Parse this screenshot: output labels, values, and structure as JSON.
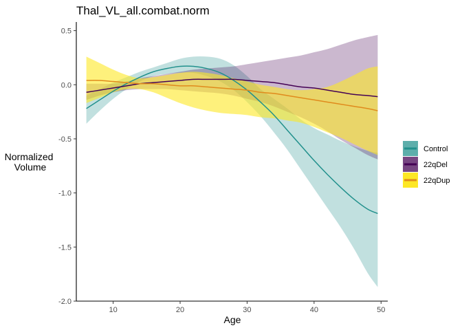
{
  "chart_data": {
    "type": "line",
    "title": "Thal_VL_all.combat.norm",
    "xlabel": "Age",
    "ylabel": "Normalized\nVolume",
    "xlim": [
      4.5,
      51
    ],
    "ylim": [
      -2.0,
      0.58
    ],
    "x_ticks": [
      10,
      20,
      30,
      40,
      50
    ],
    "y_ticks": [
      0.5,
      0.0,
      -0.5,
      -1.0,
      -1.5,
      -2.0
    ],
    "y_tick_labels": [
      "0.5",
      "0.0",
      "-0.5",
      "-1.0",
      "-1.5",
      "-2.0"
    ],
    "grid": false,
    "legend_position": "right",
    "series": [
      {
        "name": "Control",
        "line_color": "#21908c",
        "band_color": "#21908c",
        "band_opacity": 0.28,
        "x": [
          6,
          8,
          10,
          12,
          14,
          16,
          18,
          20,
          22,
          24,
          26,
          28,
          30,
          32,
          34,
          36,
          38,
          40,
          42,
          44,
          46,
          48,
          49.5
        ],
        "y": [
          -0.22,
          -0.14,
          -0.06,
          0.01,
          0.07,
          0.12,
          0.15,
          0.17,
          0.17,
          0.15,
          0.11,
          0.04,
          -0.05,
          -0.16,
          -0.28,
          -0.42,
          -0.56,
          -0.7,
          -0.83,
          -0.95,
          -1.06,
          -1.15,
          -1.19
        ],
        "lower": [
          -0.36,
          -0.24,
          -0.13,
          -0.04,
          0.03,
          0.08,
          0.1,
          0.11,
          0.11,
          0.08,
          0.03,
          -0.05,
          -0.16,
          -0.29,
          -0.44,
          -0.6,
          -0.78,
          -0.96,
          -1.14,
          -1.32,
          -1.52,
          -1.74,
          -1.87
        ],
        "upper": [
          -0.1,
          -0.04,
          0.02,
          0.07,
          0.12,
          0.16,
          0.2,
          0.24,
          0.26,
          0.26,
          0.24,
          0.18,
          0.08,
          -0.04,
          -0.13,
          -0.22,
          -0.32,
          -0.4,
          -0.46,
          -0.52,
          -0.57,
          -0.61,
          -0.63
        ]
      },
      {
        "name": "22qDel",
        "line_color": "#440154",
        "band_color": "#440154",
        "band_opacity": 0.28,
        "x": [
          6,
          8,
          10,
          12,
          14,
          16,
          18,
          20,
          22,
          24,
          26,
          28,
          30,
          32,
          34,
          36,
          38,
          40,
          42,
          44,
          46,
          48,
          49.5
        ],
        "y": [
          -0.07,
          -0.05,
          -0.03,
          -0.01,
          0.01,
          0.02,
          0.03,
          0.04,
          0.05,
          0.05,
          0.05,
          0.05,
          0.04,
          0.03,
          0.02,
          0.0,
          -0.02,
          -0.03,
          -0.05,
          -0.07,
          -0.09,
          -0.1,
          -0.11
        ],
        "lower": [
          -0.14,
          -0.1,
          -0.07,
          -0.05,
          -0.04,
          -0.04,
          -0.04,
          -0.05,
          -0.06,
          -0.07,
          -0.08,
          -0.1,
          -0.13,
          -0.16,
          -0.2,
          -0.25,
          -0.3,
          -0.36,
          -0.43,
          -0.51,
          -0.58,
          -0.65,
          -0.69
        ],
        "upper": [
          0.01,
          0.01,
          0.01,
          0.03,
          0.06,
          0.08,
          0.1,
          0.12,
          0.14,
          0.15,
          0.16,
          0.17,
          0.19,
          0.21,
          0.23,
          0.25,
          0.27,
          0.3,
          0.33,
          0.37,
          0.41,
          0.44,
          0.46
        ]
      },
      {
        "name": "22qDup",
        "line_color": "#e08a1c",
        "band_color": "#fde725",
        "band_opacity": 0.6,
        "x": [
          6,
          8,
          10,
          12,
          14,
          16,
          18,
          20,
          22,
          24,
          26,
          28,
          30,
          32,
          34,
          36,
          38,
          40,
          42,
          44,
          46,
          48,
          49.5
        ],
        "y": [
          0.04,
          0.04,
          0.03,
          0.02,
          0.01,
          0.01,
          0.0,
          -0.01,
          -0.01,
          -0.02,
          -0.03,
          -0.04,
          -0.05,
          -0.07,
          -0.08,
          -0.1,
          -0.12,
          -0.14,
          -0.16,
          -0.18,
          -0.2,
          -0.22,
          -0.24
        ],
        "lower": [
          -0.17,
          -0.12,
          -0.07,
          -0.04,
          -0.04,
          -0.07,
          -0.12,
          -0.17,
          -0.21,
          -0.24,
          -0.26,
          -0.27,
          -0.28,
          -0.3,
          -0.31,
          -0.33,
          -0.35,
          -0.39,
          -0.44,
          -0.49,
          -0.55,
          -0.61,
          -0.65
        ],
        "upper": [
          0.26,
          0.2,
          0.14,
          0.09,
          0.06,
          0.07,
          0.09,
          0.11,
          0.12,
          0.11,
          0.09,
          0.06,
          0.03,
          0.0,
          -0.02,
          -0.04,
          -0.05,
          -0.04,
          -0.02,
          0.03,
          0.09,
          0.15,
          0.17
        ]
      }
    ]
  }
}
